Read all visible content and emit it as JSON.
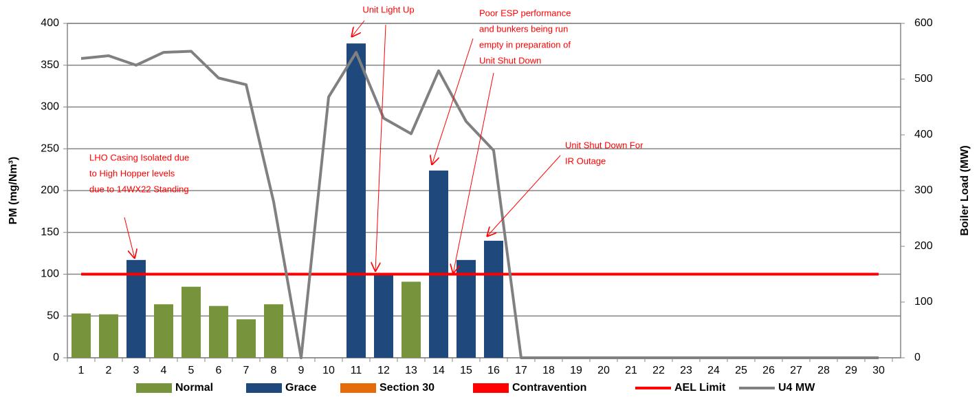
{
  "chart_data": {
    "type": "bar",
    "y_label": "PM (mg/Nm³)",
    "y2_label": "Boiler Load (MW)",
    "categories": [
      "1",
      "2",
      "3",
      "4",
      "5",
      "6",
      "7",
      "8",
      "9",
      "10",
      "11",
      "12",
      "13",
      "14",
      "15",
      "16",
      "17",
      "18",
      "19",
      "20",
      "21",
      "22",
      "23",
      "24",
      "25",
      "26",
      "27",
      "28",
      "29",
      "30"
    ],
    "series": [
      {
        "name": "Normal",
        "kind": "bar",
        "color": "#77933c",
        "values": [
          53,
          52,
          null,
          64,
          85,
          62,
          46,
          64,
          null,
          null,
          null,
          null,
          91,
          null,
          null,
          null,
          null,
          null,
          null,
          null,
          null,
          null,
          null,
          null,
          null,
          null,
          null,
          null,
          null,
          null
        ]
      },
      {
        "name": "Grace",
        "kind": "bar",
        "color": "#1f497d",
        "values": [
          null,
          null,
          117,
          null,
          null,
          null,
          null,
          null,
          null,
          null,
          376,
          100,
          null,
          224,
          117,
          140,
          null,
          null,
          null,
          null,
          null,
          null,
          null,
          null,
          null,
          null,
          null,
          null,
          null,
          null
        ]
      },
      {
        "name": "Section 30",
        "kind": "bar",
        "color": "#e46c0a",
        "values": [
          null,
          null,
          null,
          null,
          null,
          null,
          null,
          null,
          null,
          null,
          null,
          null,
          null,
          null,
          null,
          null,
          null,
          null,
          null,
          null,
          null,
          null,
          null,
          null,
          null,
          null,
          null,
          null,
          null,
          null
        ]
      },
      {
        "name": "Contravention",
        "kind": "bar",
        "color": "#ff0000",
        "values": [
          null,
          null,
          null,
          null,
          null,
          null,
          null,
          null,
          null,
          null,
          null,
          null,
          null,
          null,
          null,
          null,
          null,
          null,
          null,
          null,
          null,
          null,
          null,
          null,
          null,
          null,
          null,
          null,
          null,
          null
        ]
      },
      {
        "name": "AEL Limit",
        "kind": "line",
        "color": "#ff0000",
        "values": [
          100,
          100,
          100,
          100,
          100,
          100,
          100,
          100,
          100,
          100,
          100,
          100,
          100,
          100,
          100,
          100,
          100,
          100,
          100,
          100,
          100,
          100,
          100,
          100,
          100,
          100,
          100,
          100,
          100,
          100
        ]
      },
      {
        "name": "U4 MW",
        "kind": "line",
        "axis": "y2",
        "color": "#808080",
        "values": [
          537,
          542,
          525,
          548,
          550,
          502,
          490,
          280,
          0,
          468,
          548,
          430,
          402,
          515,
          424,
          372,
          0,
          0,
          0,
          0,
          0,
          0,
          0,
          0,
          0,
          0,
          0,
          0,
          0,
          0
        ]
      }
    ],
    "ylim": [
      0,
      400
    ],
    "yticks": [
      0,
      50,
      100,
      150,
      200,
      250,
      300,
      350,
      400
    ],
    "y2lim": [
      0,
      600
    ],
    "y2ticks": [
      0,
      100,
      200,
      300,
      400,
      500,
      600
    ],
    "grid": true,
    "annotations": [
      [
        "LHO Casing Isolated due",
        "to High Hopper levels",
        "due to 14WX22 Standing"
      ],
      [
        "Unit Light Up"
      ],
      [
        "Poor ESP performance",
        "and bunkers being run",
        "empty in preparation of",
        "Unit Shut Down"
      ],
      [
        "Unit Shut Down For",
        "IR Outage"
      ]
    ]
  }
}
